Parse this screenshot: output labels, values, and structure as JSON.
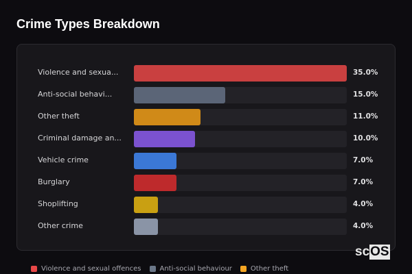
{
  "title": "Crime Types Breakdown",
  "chart_data": {
    "type": "bar",
    "orientation": "horizontal",
    "xlim": [
      0,
      35
    ],
    "categories": [
      "Violence and sexua...",
      "Anti-social behavi...",
      "Other theft",
      "Criminal damage an...",
      "Vehicle crime",
      "Burglary",
      "Shoplifting",
      "Other crime"
    ],
    "values": [
      35.0,
      15.0,
      11.0,
      10.0,
      7.0,
      7.0,
      4.0,
      4.0
    ],
    "value_labels": [
      "35.0%",
      "15.0%",
      "11.0%",
      "10.0%",
      "7.0%",
      "7.0%",
      "4.0%",
      "4.0%"
    ],
    "colors": [
      "#c94040",
      "#5b6577",
      "#d08a18",
      "#7b52cf",
      "#3b78d6",
      "#be2a2c",
      "#c9a012",
      "#8a94a6"
    ],
    "legend": [
      {
        "name": "Violence and sexual offences",
        "color": "#e84848"
      },
      {
        "name": "Anti-social behaviour",
        "color": "#6b7789"
      },
      {
        "name": "Other theft",
        "color": "#f5a623"
      }
    ],
    "legend_position": "bottom"
  },
  "watermark": {
    "left": "sc",
    "right": "OS"
  }
}
